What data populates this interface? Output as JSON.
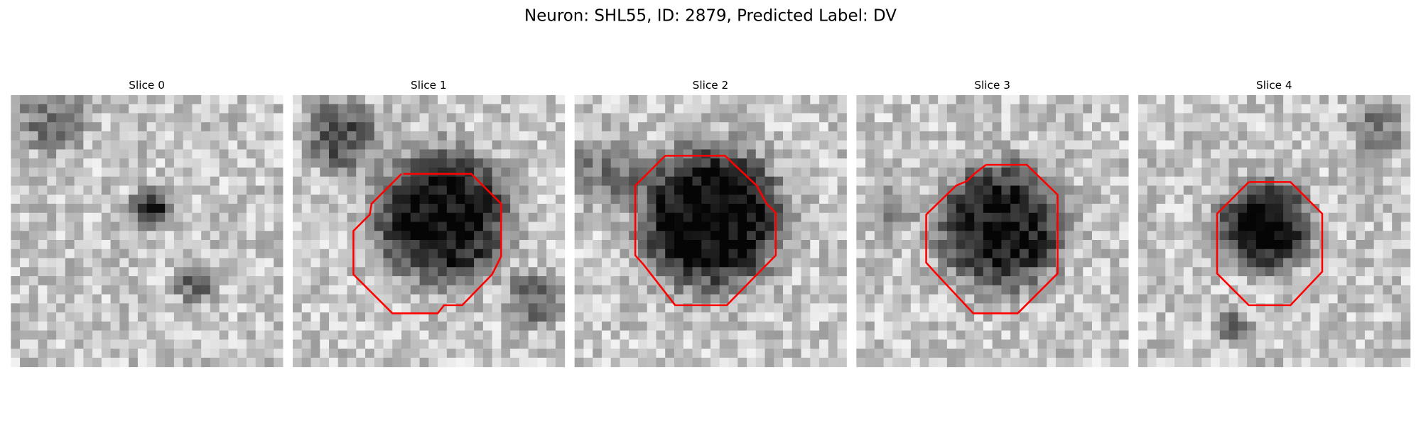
{
  "header": {
    "title": "Neuron: SHL55, ID: 2879, Predicted Label: DV"
  },
  "panels": [
    {
      "title": "Slice 0"
    },
    {
      "title": "Slice 1"
    },
    {
      "title": "Slice 2"
    },
    {
      "title": "Slice 3"
    },
    {
      "title": "Slice 4"
    }
  ]
}
